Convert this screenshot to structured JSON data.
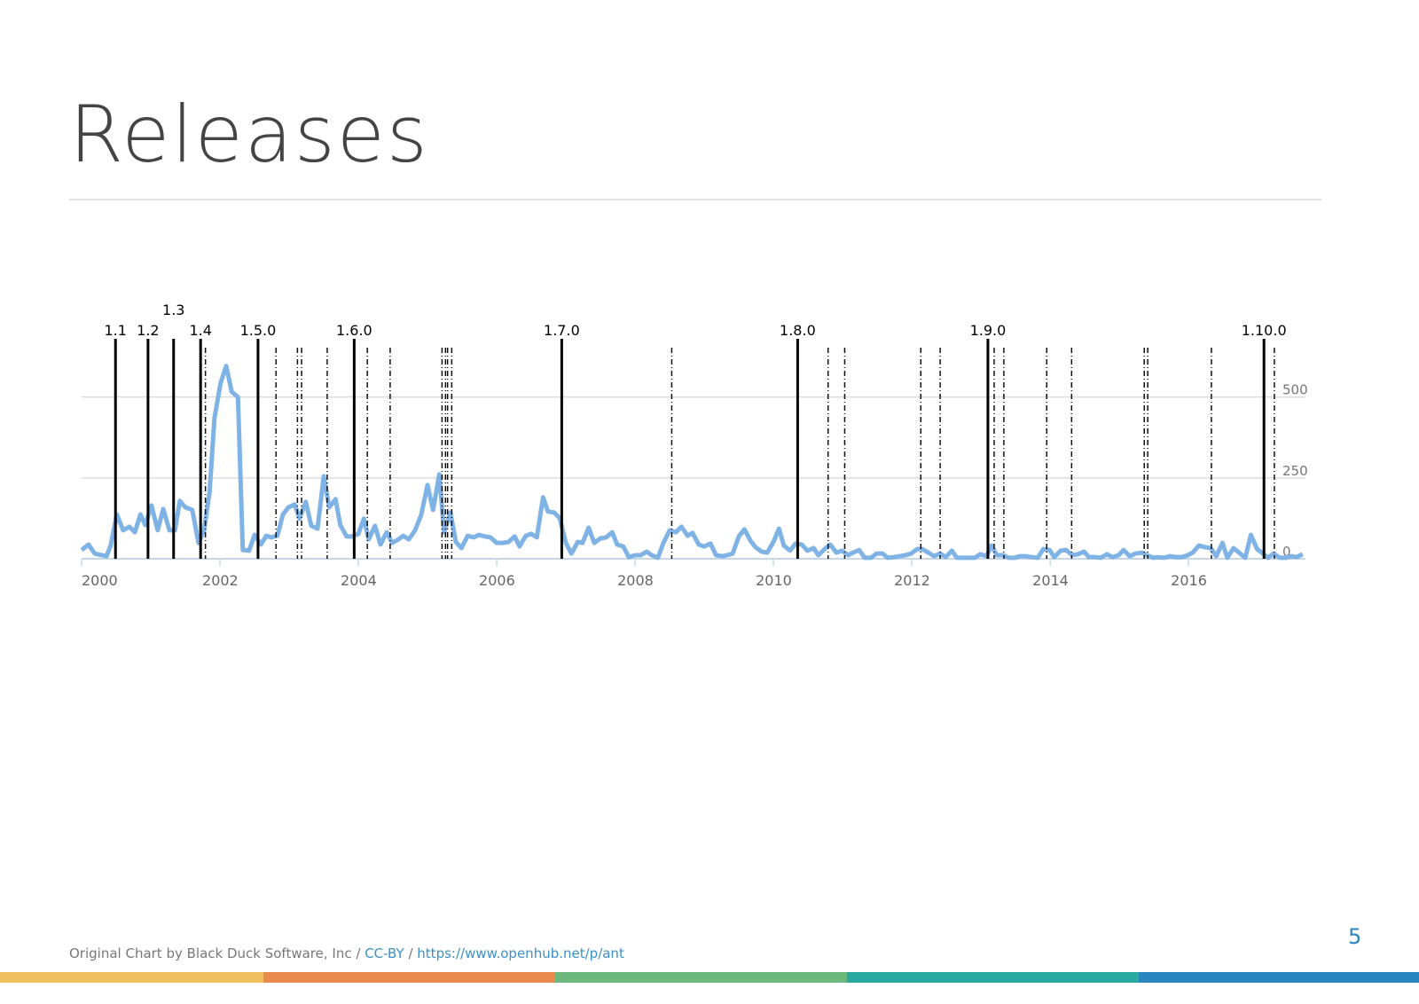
{
  "title": "Releases",
  "footer": {
    "credit": "Original Chart by Black Duck Software, Inc",
    "separator": "/",
    "license": "CC-BY",
    "url": "https://www.openhub.net/p/ant"
  },
  "page_number": "5",
  "chart_data": {
    "type": "line",
    "color": "#7fb3e6",
    "xlim": [
      2000,
      2017.69
    ],
    "xticks": [
      2000,
      2002,
      2004,
      2006,
      2008,
      2010,
      2012,
      2014,
      2016
    ],
    "ylim": [
      0,
      680
    ],
    "yticks": [
      0,
      250,
      500
    ],
    "grid": true,
    "x": [
      2000.0,
      2000.1,
      2000.19,
      2000.36,
      2000.42,
      2000.51,
      2000.6,
      2000.69,
      2000.77,
      2000.85,
      2000.92,
      2001.01,
      2001.1,
      2001.18,
      2001.27,
      2001.35,
      2001.42,
      2001.5,
      2001.6,
      2001.69,
      2001.77,
      2001.85,
      2001.92,
      2002.01,
      2002.09,
      2002.17,
      2002.26,
      2002.33,
      2002.42,
      2002.5,
      2002.59,
      2002.67,
      2002.74,
      2002.83,
      2002.91,
      2002.99,
      2003.08,
      2003.15,
      2003.24,
      2003.32,
      2003.41,
      2003.5,
      2003.58,
      2003.67,
      2003.74,
      2003.83,
      2003.91,
      2004.0,
      2004.08,
      2004.15,
      2004.24,
      2004.32,
      2004.41,
      2004.49,
      2004.58,
      2004.65,
      2004.73,
      2004.82,
      2004.91,
      2005.0,
      2005.08,
      2005.17,
      2005.24,
      2005.33,
      2005.41,
      2005.49,
      2005.58,
      2005.67,
      2005.74,
      2005.83,
      2005.91,
      2006.0,
      2006.09,
      2006.17,
      2006.26,
      2006.33,
      2006.42,
      2006.5,
      2006.58,
      2006.67,
      2006.74,
      2006.83,
      2006.91,
      2007.0,
      2007.08,
      2007.17,
      2007.24,
      2007.33,
      2007.41,
      2007.5,
      2007.58,
      2007.67,
      2007.74,
      2007.83,
      2007.91,
      2008.0,
      2008.08,
      2008.17,
      2008.24,
      2008.33,
      2008.41,
      2008.5,
      2008.59,
      2008.67,
      2008.76,
      2008.83,
      2008.92,
      2009.0,
      2009.09,
      2009.17,
      2009.26,
      2009.33,
      2009.41,
      2009.5,
      2009.58,
      2009.67,
      2009.74,
      2009.83,
      2009.91,
      2010.0,
      2010.08,
      2010.15,
      2010.24,
      2010.32,
      2010.41,
      2010.49,
      2010.58,
      2010.65,
      2010.74,
      2010.82,
      2010.91,
      2010.99,
      2011.08,
      2011.15,
      2011.24,
      2011.32,
      2011.41,
      2011.49,
      2011.58,
      2011.65,
      2011.74,
      2011.82,
      2011.91,
      2011.99,
      2012.08,
      2012.15,
      2012.24,
      2012.32,
      2012.41,
      2012.49,
      2012.58,
      2012.65,
      2012.74,
      2012.82,
      2012.91,
      2012.99,
      2013.08,
      2013.15,
      2013.23,
      2013.32,
      2013.4,
      2013.49,
      2013.56,
      2013.65,
      2013.73,
      2013.82,
      2013.9,
      2013.99,
      2014.06,
      2014.15,
      2014.23,
      2014.32,
      2014.4,
      2014.49,
      2014.56,
      2014.65,
      2014.73,
      2014.82,
      2014.9,
      2014.99,
      2015.06,
      2015.15,
      2015.23,
      2015.32,
      2015.4,
      2015.49,
      2015.56,
      2015.65,
      2015.73,
      2015.82,
      2015.9,
      2015.99,
      2016.06,
      2016.15,
      2016.23,
      2016.32,
      2016.4,
      2016.49,
      2016.56,
      2016.65,
      2016.73,
      2016.82,
      2016.9,
      2016.99,
      2017.06,
      2017.15,
      2017.23,
      2017.32,
      2017.4,
      2017.49,
      2017.56,
      2017.65
    ],
    "values": [
      27,
      44,
      16,
      8,
      41,
      137,
      88,
      99,
      82,
      137,
      104,
      165,
      88,
      154,
      88,
      88,
      179,
      159,
      151,
      49,
      88,
      206,
      434,
      544,
      596,
      516,
      500,
      27,
      25,
      74,
      44,
      71,
      66,
      71,
      137,
      159,
      168,
      124,
      176,
      102,
      93,
      255,
      159,
      184,
      104,
      69,
      69,
      77,
      124,
      60,
      102,
      44,
      82,
      49,
      60,
      71,
      60,
      88,
      137,
      228,
      151,
      261,
      82,
      143,
      52,
      33,
      71,
      66,
      74,
      69,
      66,
      49,
      49,
      52,
      69,
      38,
      71,
      77,
      66,
      190,
      146,
      143,
      126,
      49,
      16,
      52,
      49,
      96,
      49,
      63,
      66,
      82,
      44,
      38,
      5,
      11,
      11,
      22,
      11,
      3,
      49,
      88,
      82,
      99,
      71,
      80,
      44,
      38,
      47,
      11,
      8,
      11,
      16,
      69,
      91,
      55,
      36,
      22,
      19,
      52,
      93,
      41,
      25,
      47,
      44,
      25,
      33,
      11,
      30,
      44,
      19,
      25,
      11,
      19,
      27,
      3,
      3,
      16,
      16,
      3,
      5,
      8,
      11,
      16,
      30,
      30,
      19,
      8,
      16,
      5,
      25,
      3,
      3,
      3,
      3,
      14,
      8,
      41,
      11,
      11,
      3,
      3,
      8,
      8,
      5,
      3,
      30,
      27,
      5,
      25,
      27,
      11,
      14,
      22,
      5,
      5,
      3,
      14,
      5,
      11,
      27,
      8,
      16,
      19,
      11,
      3,
      5,
      3,
      8,
      5,
      5,
      11,
      19,
      41,
      36,
      33,
      8,
      49,
      3,
      33,
      19,
      3,
      74,
      30,
      19,
      3,
      16,
      3,
      3,
      8,
      5,
      14
    ],
    "major_releases": [
      {
        "label": "1.1",
        "x": 2000.49
      },
      {
        "label": "1.2",
        "x": 2000.96
      },
      {
        "label": "1.3",
        "x": 2001.33
      },
      {
        "label": "1.4",
        "x": 2001.72
      },
      {
        "label": "1.5.0",
        "x": 2002.55
      },
      {
        "label": "1.6.0",
        "x": 2003.94
      },
      {
        "label": "1.7.0",
        "x": 2006.94
      },
      {
        "label": "1.8.0",
        "x": 2010.35
      },
      {
        "label": "1.9.0",
        "x": 2013.1
      },
      {
        "label": "1.10.0",
        "x": 2017.09
      }
    ],
    "minor_releases": [
      2001.79,
      2002.81,
      2003.12,
      2003.18,
      2003.55,
      2004.13,
      2004.46,
      2005.21,
      2005.26,
      2005.29,
      2005.35,
      2008.53,
      2010.79,
      2011.03,
      2012.13,
      2012.41,
      2013.19,
      2013.33,
      2013.95,
      2014.31,
      2015.36,
      2015.41,
      2016.33,
      2017.24
    ]
  }
}
